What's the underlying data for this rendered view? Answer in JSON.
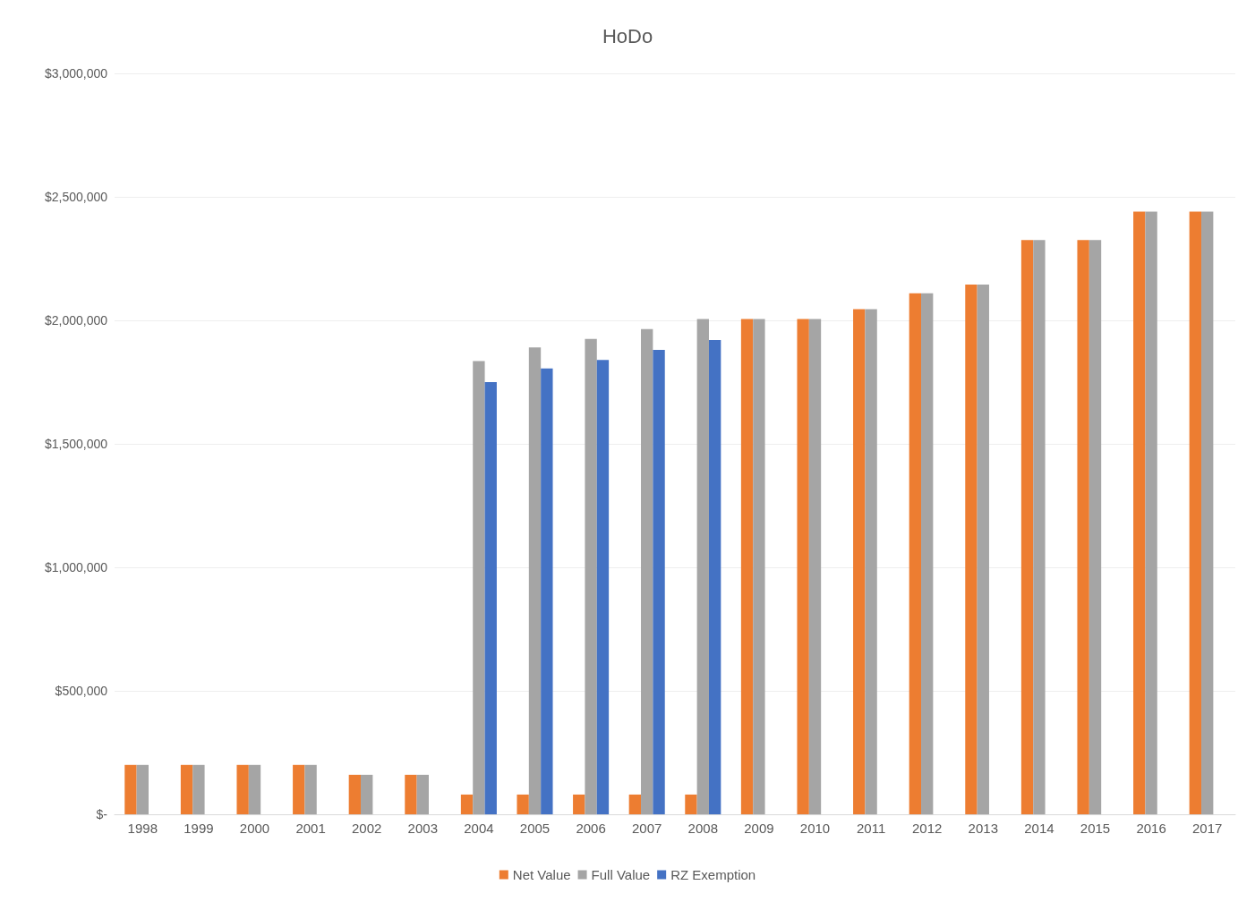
{
  "chart_data": {
    "type": "bar",
    "title": "HoDo",
    "categories": [
      "1998",
      "1999",
      "2000",
      "2001",
      "2002",
      "2003",
      "2004",
      "2005",
      "2006",
      "2007",
      "2008",
      "2009",
      "2010",
      "2011",
      "2012",
      "2013",
      "2014",
      "2015",
      "2016",
      "2017"
    ],
    "series": [
      {
        "name": "Net Value",
        "color": "#ed7d31",
        "values": [
          200000,
          200000,
          200000,
          200000,
          160000,
          160000,
          80000,
          80000,
          80000,
          80000,
          80000,
          2005000,
          2005000,
          2045000,
          2110000,
          2145000,
          2325000,
          2325000,
          2440000,
          2440000
        ]
      },
      {
        "name": "Full Value",
        "color": "#a5a5a5",
        "values": [
          200000,
          200000,
          200000,
          200000,
          160000,
          160000,
          1835000,
          1890000,
          1925000,
          1965000,
          2005000,
          2005000,
          2005000,
          2045000,
          2110000,
          2145000,
          2325000,
          2325000,
          2440000,
          2440000
        ]
      },
      {
        "name": "RZ Exemption",
        "color": "#4472c4",
        "values": [
          null,
          null,
          null,
          null,
          null,
          null,
          1750000,
          1805000,
          1840000,
          1880000,
          1920000,
          null,
          null,
          null,
          null,
          null,
          null,
          null,
          null,
          null
        ]
      }
    ],
    "ylim": [
      0,
      3000000
    ],
    "yticks": [
      {
        "value": 0,
        "label": "$-"
      },
      {
        "value": 500000,
        "label": "$500,000"
      },
      {
        "value": 1000000,
        "label": "$1,000,000"
      },
      {
        "value": 1500000,
        "label": "$1,500,000"
      },
      {
        "value": 2000000,
        "label": "$2,000,000"
      },
      {
        "value": 2500000,
        "label": "$2,500,000"
      },
      {
        "value": 3000000,
        "label": "$3,000,000"
      }
    ],
    "grid": "y",
    "legend": "bottom"
  }
}
